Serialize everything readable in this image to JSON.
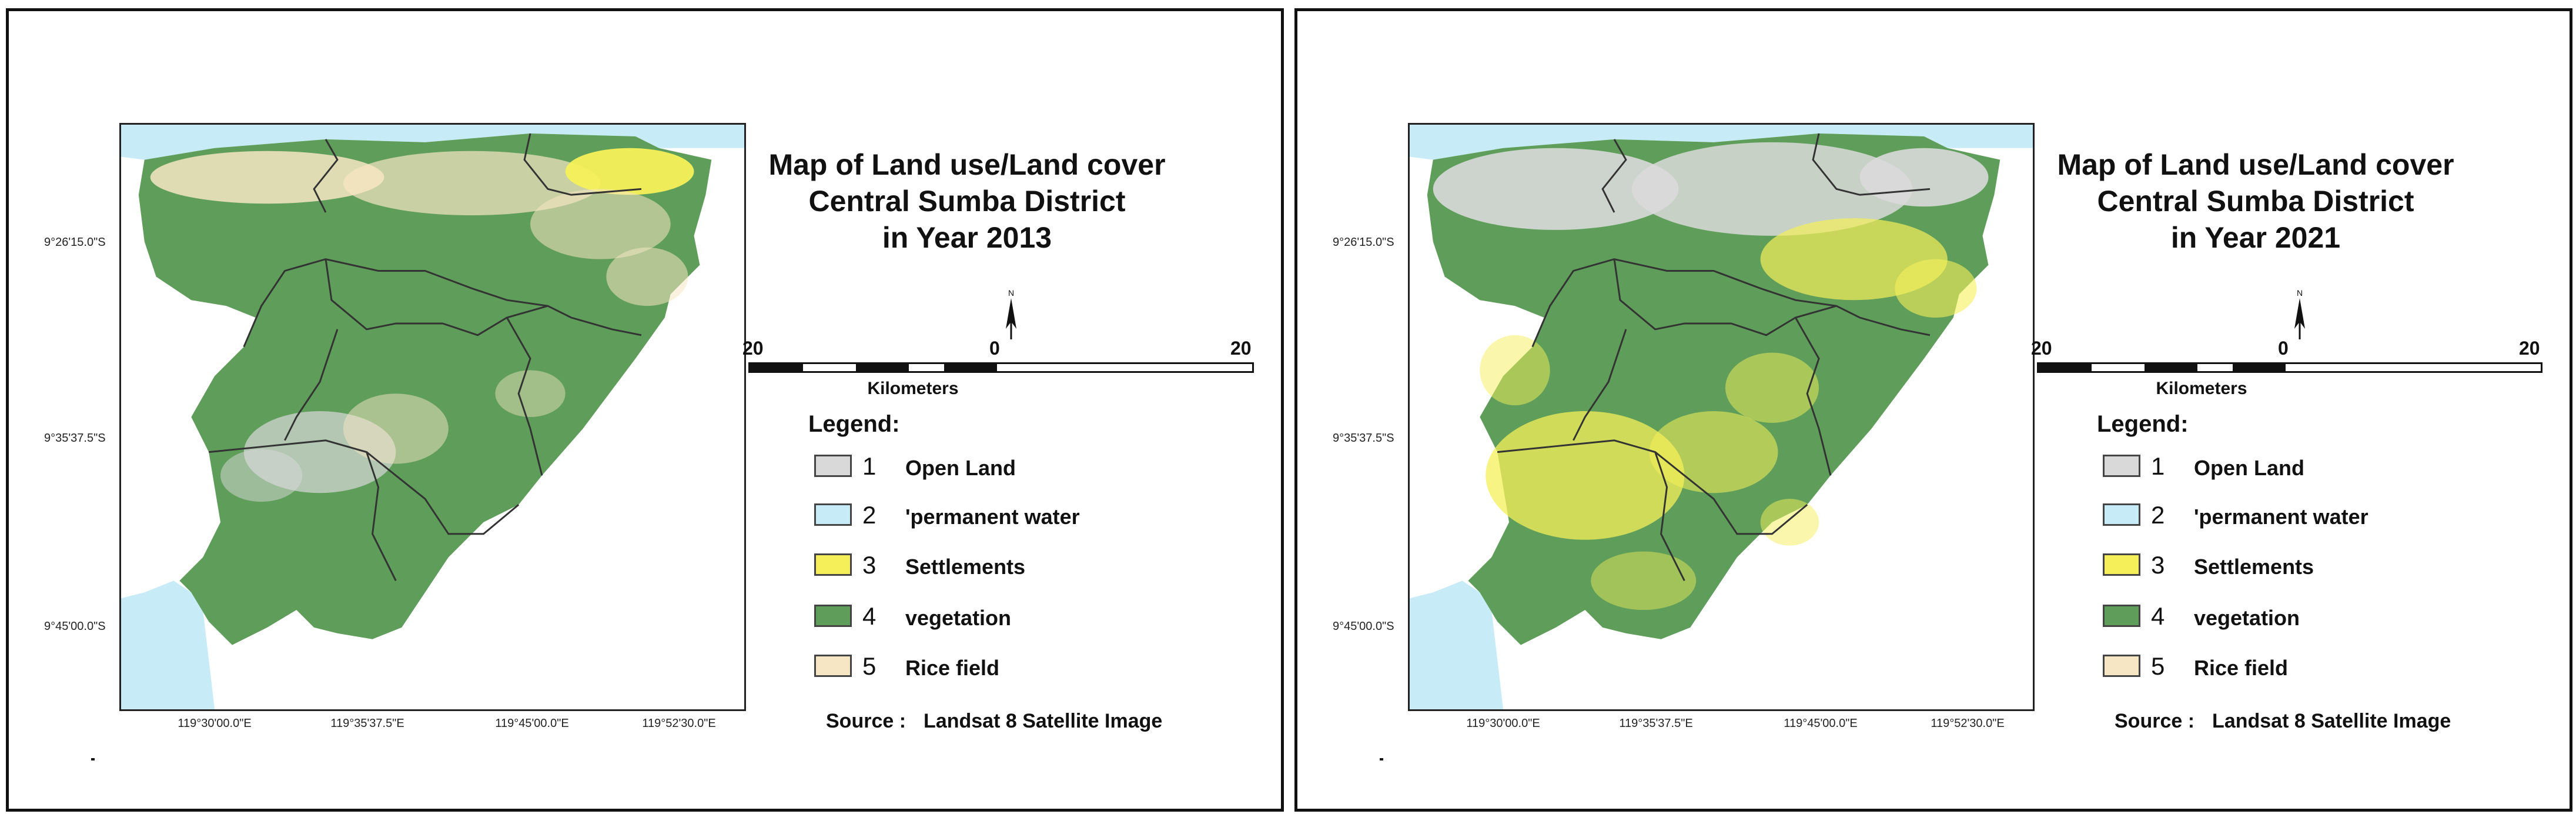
{
  "legend": {
    "title": "Legend:",
    "items": [
      {
        "number": "1",
        "label": "Open Land",
        "color": "#d9d9d9"
      },
      {
        "number": "2",
        "label": "'permanent water",
        "color": "#c7ecf7"
      },
      {
        "number": "3",
        "label": "Settlements",
        "color": "#f5f05a"
      },
      {
        "number": "4",
        "label": "vegetation",
        "color": "#5f9e5a"
      },
      {
        "number": "5",
        "label": "Rice field",
        "color": "#f6e6c3"
      }
    ]
  },
  "scale": {
    "left": "20",
    "center": "0",
    "right": "20",
    "unit": "Kilometers"
  },
  "north_label": "N",
  "source": {
    "label": "Source :",
    "value": "Landsat 8 Satellite Image"
  },
  "latitudes": [
    "9°26'15.0\"S",
    "9°35'37.5\"S",
    "9°45'00.0\"S"
  ],
  "longitudes": [
    "119°30'00.0\"E",
    "119°35'37.5\"E",
    "119°45'00.0\"E",
    "119°52'30.0\"E"
  ],
  "maps": [
    {
      "title_line1": "Map of Land use/Land cover",
      "title_line2": "Central Sumba District",
      "title_line3": "in Year 2013",
      "dominant_cover": "vegetation",
      "settlement_extent": "low"
    },
    {
      "title_line1": "Map of Land use/Land cover",
      "title_line2": "Central Sumba District",
      "title_line3": "in Year 2021",
      "dominant_cover": "vegetation",
      "settlement_extent": "high"
    }
  ]
}
